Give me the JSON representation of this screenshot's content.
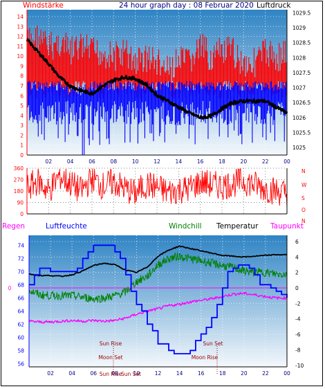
{
  "colors": {
    "wind_axis": "#ff0000",
    "pressure_axis": "#000000",
    "gust": "#ff0000",
    "wind": "#0000ff",
    "pressure": "#000000",
    "direction": "#ff0000",
    "humidity": "#0000ff",
    "windchill": "#008000",
    "temperature": "#000000",
    "dewpoint": "#ff00ff",
    "rain_axis": "#ff00ff",
    "sun_label": "#990000",
    "bg_top": "#2f84c4",
    "bg_bottom": "#f4f8fc"
  },
  "chart_data": [
    {
      "id": "wind_pressure",
      "type": "line",
      "title": "24 hour graph day : 08 Februar 2020",
      "left_label": "Windstärke",
      "right_label": "Luftdruck",
      "x_ticks": [
        "02",
        "04",
        "06",
        "08",
        "10",
        "12",
        "14",
        "16",
        "18",
        "20",
        "22",
        "00"
      ],
      "x_range": [
        0,
        24
      ],
      "left_ticks": [
        "0",
        "1",
        "2",
        "3",
        "4",
        "5",
        "6",
        "7",
        "8",
        "9",
        "10",
        "11",
        "12",
        "13",
        "14"
      ],
      "left_range": [
        0,
        14.7
      ],
      "right_ticks": [
        "1025",
        "1025.5",
        "1026",
        "1026.5",
        "1027",
        "1027.5",
        "1028",
        "1028.5",
        "1029",
        "1029.5"
      ],
      "right_range": [
        1024.75,
        1029.6
      ],
      "series": [
        {
          "key": "gust_band",
          "values": [
            [
              0,
              13
            ],
            [
              1,
              13.5
            ],
            [
              2,
              12.5
            ],
            [
              3,
              13
            ],
            [
              4,
              12
            ],
            [
              5,
              12.5
            ],
            [
              6,
              12
            ],
            [
              7,
              12
            ],
            [
              8,
              11.5
            ],
            [
              9,
              12
            ],
            [
              10,
              11
            ],
            [
              11,
              11.5
            ],
            [
              12,
              11
            ],
            [
              13,
              10
            ],
            [
              14,
              11
            ],
            [
              15,
              11
            ],
            [
              16,
              12.5
            ],
            [
              17,
              11.5
            ],
            [
              18,
              12
            ],
            [
              19,
              12
            ],
            [
              20,
              11
            ],
            [
              21,
              11
            ],
            [
              22,
              12
            ],
            [
              23,
              11.5
            ],
            [
              24,
              12
            ]
          ]
        },
        {
          "key": "wind_band",
          "values": [
            [
              0,
              7.5
            ],
            [
              1,
              7.5
            ],
            [
              2,
              7.5
            ],
            [
              3,
              7.5
            ],
            [
              4,
              7
            ],
            [
              5,
              7
            ],
            [
              6,
              7.5
            ],
            [
              7,
              7.5
            ],
            [
              8,
              7.5
            ],
            [
              9,
              7.5
            ],
            [
              10,
              7.5
            ],
            [
              11,
              7.5
            ],
            [
              12,
              7.5
            ],
            [
              13,
              7.5
            ],
            [
              14,
              7.5
            ],
            [
              15,
              7.5
            ],
            [
              16,
              7.5
            ],
            [
              17,
              7.5
            ],
            [
              18,
              7.5
            ],
            [
              19,
              7.5
            ],
            [
              20,
              7.5
            ],
            [
              21,
              7.5
            ],
            [
              22,
              7.5
            ],
            [
              23,
              7.5
            ],
            [
              24,
              7.5
            ]
          ]
        },
        {
          "key": "pressure",
          "values": [
            [
              0,
              1028.6
            ],
            [
              1,
              1028.2
            ],
            [
              2,
              1027.8
            ],
            [
              3,
              1027.35
            ],
            [
              4,
              1027.05
            ],
            [
              5,
              1026.9
            ],
            [
              6,
              1026.8
            ],
            [
              7,
              1027.05
            ],
            [
              8,
              1027.25
            ],
            [
              9,
              1027.35
            ],
            [
              10,
              1027.3
            ],
            [
              11,
              1027.1
            ],
            [
              12,
              1026.75
            ],
            [
              13,
              1026.55
            ],
            [
              14,
              1026.35
            ],
            [
              15,
              1026.15
            ],
            [
              16,
              1026.0
            ],
            [
              17,
              1026.05
            ],
            [
              18,
              1026.3
            ],
            [
              19,
              1026.5
            ],
            [
              20,
              1026.55
            ],
            [
              21,
              1026.55
            ],
            [
              22,
              1026.55
            ],
            [
              23,
              1026.35
            ],
            [
              24,
              1026.15
            ]
          ]
        }
      ]
    },
    {
      "id": "wind_direction",
      "type": "line",
      "x_range": [
        0,
        24
      ],
      "y_ticks": [
        "0",
        "90",
        "180",
        "270",
        "360"
      ],
      "y_range": [
        0,
        360
      ],
      "right_labels": [
        "N",
        "W",
        "S",
        "O",
        "N"
      ],
      "series": [
        {
          "key": "direction",
          "values": [
            [
              0,
              200
            ],
            [
              1,
              260
            ],
            [
              2,
              180
            ],
            [
              3,
              300
            ],
            [
              4,
              240
            ],
            [
              5,
              180
            ],
            [
              6,
              280
            ],
            [
              7,
              220
            ],
            [
              8,
              250
            ],
            [
              9,
              200
            ],
            [
              10,
              160
            ],
            [
              11,
              230
            ],
            [
              12,
              210
            ],
            [
              13,
              170
            ],
            [
              14,
              190
            ],
            [
              15,
              200
            ],
            [
              16,
              250
            ],
            [
              17,
              230
            ],
            [
              18,
              220
            ],
            [
              19,
              240
            ],
            [
              20,
              260
            ],
            [
              21,
              230
            ],
            [
              22,
              200
            ],
            [
              23,
              180
            ],
            [
              24,
              160
            ]
          ]
        }
      ]
    },
    {
      "id": "temp_humidity",
      "type": "line",
      "x_ticks": [
        "02",
        "04",
        "06",
        "08",
        "10",
        "12",
        "14",
        "16",
        "18",
        "20",
        "22",
        "00"
      ],
      "x_range": [
        0,
        24
      ],
      "rain_label": "Regen",
      "rain_ticks": [
        "0"
      ],
      "humidity_label": "Luftfeuchte",
      "humidity_ticks": [
        "56",
        "58",
        "60",
        "62",
        "64",
        "66",
        "68",
        "70",
        "72",
        "74"
      ],
      "humidity_range": [
        55.5,
        75.5
      ],
      "temp_ticks": [
        "-10",
        "-8",
        "-6",
        "-4",
        "-2",
        "0",
        "2",
        "4",
        "6"
      ],
      "temp_range": [
        -10.2,
        6.8
      ],
      "legend": [
        "Windchill",
        "Temperatur",
        "Taupunkt"
      ],
      "annotations": [
        {
          "text": "Sun Rise",
          "x": 7.5
        },
        {
          "text": "Sun Set",
          "x": 17.0
        },
        {
          "text": "Moon Set",
          "x": 7.3
        },
        {
          "text": "Moon Rise",
          "x": 17.1
        },
        {
          "text": "Sun Rise",
          "x": 7.6
        },
        {
          "text": "Sun Set",
          "x": 8.3
        }
      ],
      "series": [
        {
          "key": "humidity",
          "values": [
            [
              0,
              68
            ],
            [
              0.5,
              69.5
            ],
            [
              1,
              70.5
            ],
            [
              1.5,
              70.5
            ],
            [
              2,
              70
            ],
            [
              3,
              70
            ],
            [
              4,
              70
            ],
            [
              4.5,
              70.5
            ],
            [
              5,
              72
            ],
            [
              5.5,
              73
            ],
            [
              6,
              74
            ],
            [
              7,
              74
            ],
            [
              8,
              73
            ],
            [
              8.5,
              72
            ],
            [
              9,
              69.5
            ],
            [
              9.5,
              67
            ],
            [
              10,
              65
            ],
            [
              10.5,
              64
            ],
            [
              11,
              62
            ],
            [
              11.5,
              61
            ],
            [
              12,
              59
            ],
            [
              12.5,
              59
            ],
            [
              13,
              58
            ],
            [
              13.5,
              57.5
            ],
            [
              14,
              57.5
            ],
            [
              14.5,
              57.5
            ],
            [
              15,
              58
            ],
            [
              15.5,
              59.5
            ],
            [
              16,
              60.5
            ],
            [
              16.5,
              61.5
            ],
            [
              17,
              63
            ],
            [
              17.5,
              65
            ],
            [
              18,
              67.5
            ],
            [
              18.5,
              70
            ],
            [
              19,
              70.5
            ],
            [
              19.5,
              71
            ],
            [
              20,
              71
            ],
            [
              20.5,
              70.5
            ],
            [
              21,
              69.5
            ],
            [
              21.5,
              68
            ],
            [
              22,
              68
            ],
            [
              22.5,
              67.5
            ],
            [
              23,
              67
            ],
            [
              23.5,
              66.5
            ],
            [
              24,
              66
            ]
          ]
        },
        {
          "key": "temperature",
          "values": [
            [
              0,
              1.8
            ],
            [
              1,
              1.6
            ],
            [
              2,
              1.6
            ],
            [
              3,
              1.5
            ],
            [
              4,
              1.7
            ],
            [
              5,
              2.2
            ],
            [
              6,
              2.9
            ],
            [
              7,
              3.2
            ],
            [
              8,
              3.0
            ],
            [
              9,
              2.3
            ],
            [
              10,
              2.0
            ],
            [
              11,
              2.7
            ],
            [
              12,
              4.1
            ],
            [
              13,
              4.9
            ],
            [
              14,
              5.4
            ],
            [
              15,
              5.1
            ],
            [
              16,
              4.8
            ],
            [
              17,
              4.5
            ],
            [
              18,
              4.2
            ],
            [
              19,
              4.1
            ],
            [
              20,
              4.0
            ],
            [
              21,
              4.1
            ],
            [
              22,
              4.2
            ],
            [
              23,
              4.3
            ],
            [
              24,
              4.3
            ]
          ]
        },
        {
          "key": "windchill",
          "values": [
            [
              0,
              -0.3
            ],
            [
              1,
              -0.9
            ],
            [
              2,
              -1.0
            ],
            [
              3,
              -1.0
            ],
            [
              4,
              -1.0
            ],
            [
              5,
              -1.2
            ],
            [
              6,
              -1.4
            ],
            [
              7,
              -1.3
            ],
            [
              8,
              -1.0
            ],
            [
              9,
              -0.5
            ],
            [
              10,
              0.8
            ],
            [
              11,
              1.5
            ],
            [
              12,
              3.0
            ],
            [
              13,
              3.8
            ],
            [
              14,
              4.1
            ],
            [
              15,
              3.8
            ],
            [
              16,
              3.5
            ],
            [
              17,
              3.2
            ],
            [
              18,
              2.9
            ],
            [
              19,
              2.6
            ],
            [
              20,
              2.2
            ],
            [
              21,
              2.0
            ],
            [
              22,
              2.0
            ],
            [
              23,
              1.8
            ],
            [
              24,
              1.8
            ]
          ]
        },
        {
          "key": "dewpoint",
          "values": [
            [
              0,
              -4.3
            ],
            [
              1,
              -4.4
            ],
            [
              2,
              -4.4
            ],
            [
              3,
              -4.3
            ],
            [
              4,
              -4.2
            ],
            [
              5,
              -4.3
            ],
            [
              6,
              -4.2
            ],
            [
              7,
              -4.3
            ],
            [
              8,
              -4.2
            ],
            [
              9,
              -3.9
            ],
            [
              10,
              -3.4
            ],
            [
              11,
              -3.0
            ],
            [
              12,
              -2.7
            ],
            [
              13,
              -2.3
            ],
            [
              14,
              -2.1
            ],
            [
              15,
              -1.8
            ],
            [
              16,
              -1.6
            ],
            [
              17,
              -1.4
            ],
            [
              18,
              -1.1
            ],
            [
              19,
              -0.8
            ],
            [
              20,
              -0.7
            ],
            [
              21,
              -0.9
            ],
            [
              22,
              -1.1
            ],
            [
              23,
              -1.3
            ],
            [
              24,
              -1.3
            ]
          ]
        }
      ]
    }
  ]
}
